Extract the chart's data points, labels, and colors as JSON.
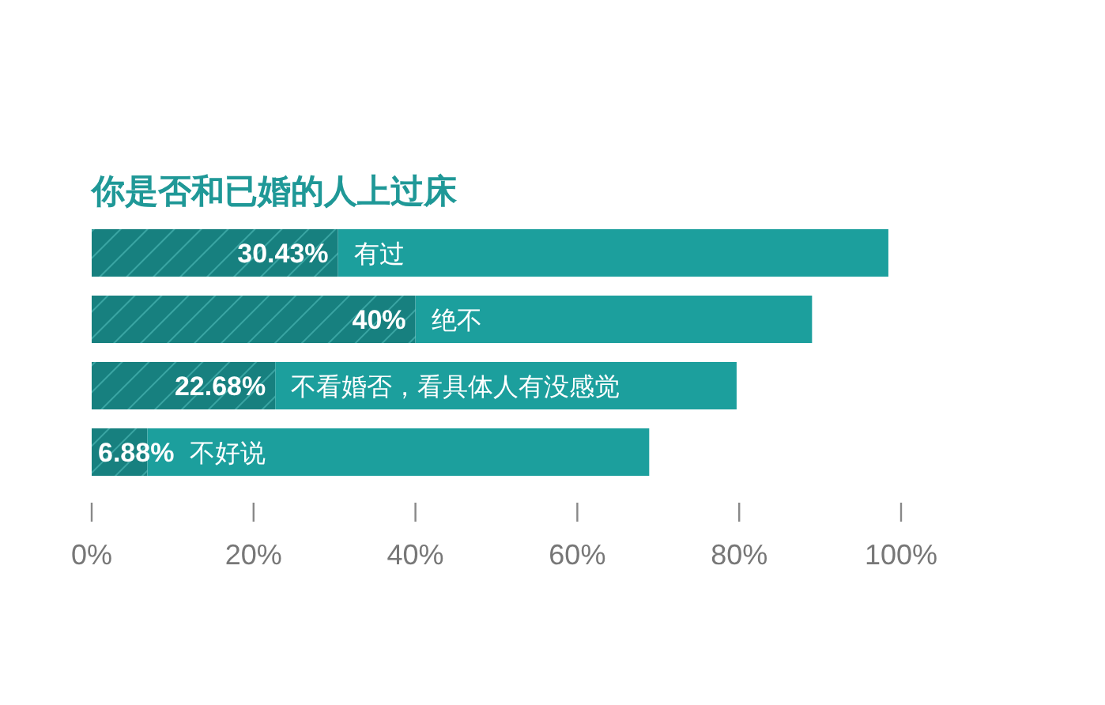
{
  "chart_data": {
    "type": "bar",
    "orientation": "horizontal",
    "stacked": true,
    "title": "你是否和已婚的人上过床",
    "categories": [
      "有过",
      "绝不",
      "不看婚否，看具体人有没感觉",
      "不好说"
    ],
    "series": [
      {
        "color": "#17807f",
        "values": [
          30.43,
          40,
          22.68,
          6.88
        ],
        "value_labels": [
          "30.43%",
          "40%",
          "22.68%",
          "6.88%"
        ]
      },
      {
        "color": "#1c9f9d",
        "values": [
          68,
          49,
          57,
          62
        ]
      }
    ],
    "xlim": [
      0,
      100
    ],
    "xticks": [
      {
        "value": 0,
        "label": "0%"
      },
      {
        "value": 20,
        "label": "20%"
      },
      {
        "value": 40,
        "label": "40%"
      },
      {
        "value": 60,
        "label": "60%"
      },
      {
        "value": 80,
        "label": "80%"
      },
      {
        "value": 100,
        "label": "100%"
      }
    ],
    "tick_labels": "x"
  }
}
